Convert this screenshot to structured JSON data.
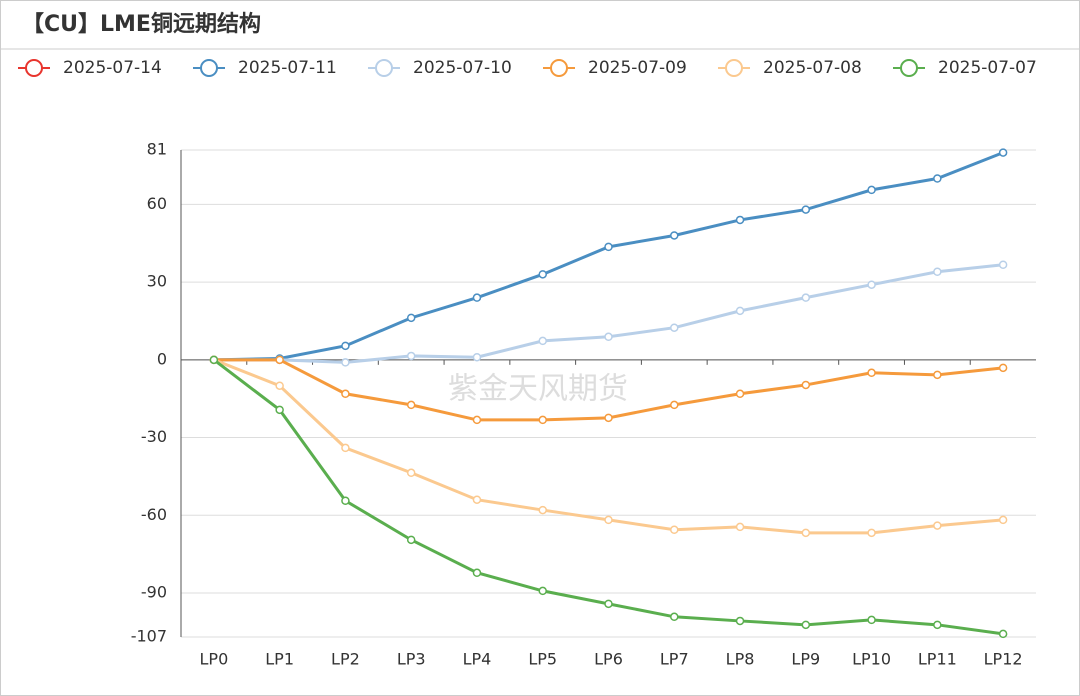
{
  "chart_data": {
    "type": "line",
    "title": "【CU】LME铜远期结构",
    "watermark": "紫金天风期货",
    "categories": [
      "LP0",
      "LP1",
      "LP2",
      "LP3",
      "LP4",
      "LP5",
      "LP6",
      "LP7",
      "LP8",
      "LP9",
      "LP10",
      "LP11",
      "LP12"
    ],
    "series": [
      {
        "name": "2025-07-14",
        "color": "#e8352e",
        "values": [
          0,
          0,
          null,
          null,
          null,
          null,
          null,
          null,
          null,
          null,
          null,
          null,
          null
        ]
      },
      {
        "name": "2025-07-11",
        "color": "#4a8ec2",
        "values": [
          0,
          0.5,
          5.4,
          16.2,
          24,
          33,
          43.6,
          48,
          54,
          58,
          65.6,
          70,
          80
        ]
      },
      {
        "name": "2025-07-10",
        "color": "#b8cfe8",
        "values": [
          0,
          0,
          -1,
          1.5,
          1,
          7.3,
          8.9,
          12.4,
          18.9,
          24,
          29,
          34,
          36.7
        ]
      },
      {
        "name": "2025-07-09",
        "color": "#f59a3c",
        "values": [
          0,
          0,
          -13.1,
          -17.4,
          -23.2,
          -23.2,
          -22.4,
          -17.4,
          -13.1,
          -9.7,
          -5,
          -5.8,
          -3.1
        ]
      },
      {
        "name": "2025-07-08",
        "color": "#fbc98f",
        "values": [
          0,
          -10,
          -34,
          -43.6,
          -54,
          -58,
          -61.8,
          -65.6,
          -64.5,
          -66.8,
          -66.8,
          -64,
          -61.8
        ]
      },
      {
        "name": "2025-07-07",
        "color": "#5aae4e",
        "values": [
          0,
          -19.3,
          -54.4,
          -69.5,
          -82.2,
          -89.2,
          -94.2,
          -99.2,
          -100.8,
          -102.3,
          -100.4,
          -102.3,
          -105.8
        ]
      }
    ],
    "ylim": [
      -107,
      81
    ],
    "yticks": [
      -107,
      -90,
      -60,
      -30,
      0,
      30,
      60,
      81
    ],
    "grid": true
  }
}
